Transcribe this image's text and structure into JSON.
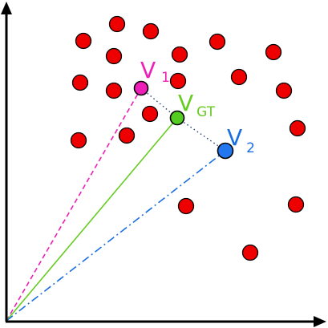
{
  "colors": {
    "axis": "#000000",
    "dot_fill": "#ee0000",
    "dot_stroke": "#000000",
    "v1": "#ee1fb6",
    "vgt": "#66cc22",
    "vgt_fill": "#55cc22",
    "v2": "#1a6fe0",
    "v2_fill": "#2277ee",
    "dotted": "#1f3c78",
    "background": "#ffffff"
  },
  "labels": {
    "v1_main": "V",
    "v1_sub": "1",
    "vgt_main": "V",
    "vgt_sub": "GT",
    "v2_main": "V",
    "v2_sub": "2"
  },
  "icons": {
    "x_axis_arrow": "arrowhead-right-icon",
    "y_axis_arrow": "arrowhead-up-icon"
  }
}
